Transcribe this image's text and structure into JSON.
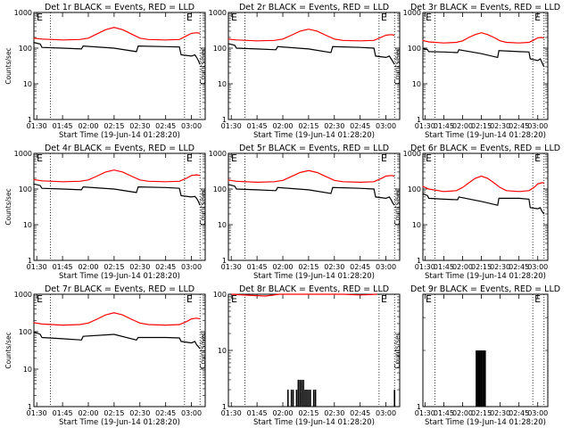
{
  "figure": {
    "ylabel": "Counts/sec",
    "xlabel": "Start Time (19-Jun-14 01:28:20)",
    "x_ticks": [
      "01:30",
      "01:45",
      "02:00",
      "02:15",
      "02:30",
      "02:45",
      "03:00"
    ],
    "y_ticks": [
      "1",
      "10",
      "100",
      "1000"
    ],
    "markers": [
      "E",
      "E"
    ]
  },
  "colors": {
    "events": "#000000",
    "lld": "#ff0000",
    "axis": "#000000"
  },
  "chart_data": [
    {
      "type": "line",
      "title": "Det 1r BLACK = Events, RED = LLD",
      "xlabel": "Start Time (19-Jun-14 01:28:20)",
      "ylabel": "Counts/sec",
      "x_unit": "time of day",
      "x_range": [
        "01:28:20",
        "03:08"
      ],
      "ylim": [
        1,
        1000
      ],
      "yscale": "log",
      "dotted_lines_at": [
        "01:38",
        "02:56",
        "03:05"
      ],
      "series": [
        {
          "name": "LLD",
          "color": "#ff0000",
          "x": [
            "01:28",
            "01:33",
            "01:45",
            "01:55",
            "02:00",
            "02:05",
            "02:10",
            "02:15",
            "02:20",
            "02:25",
            "02:30",
            "02:35",
            "02:45",
            "02:53",
            "02:57",
            "03:00",
            "03:03",
            "03:05"
          ],
          "y": [
            190,
            180,
            170,
            175,
            190,
            250,
            330,
            380,
            330,
            250,
            190,
            175,
            170,
            175,
            220,
            260,
            270,
            260
          ]
        },
        {
          "name": "Events",
          "color": "#000000",
          "x": [
            "01:28",
            "01:32",
            "01:33",
            "01:45",
            "01:56",
            "01:57",
            "02:15",
            "02:28",
            "02:29",
            "02:45",
            "02:53",
            "02:54",
            "03:00",
            "03:02",
            "03:03",
            "03:04",
            "03:05"
          ],
          "y": [
            145,
            130,
            105,
            100,
            95,
            115,
            100,
            80,
            115,
            110,
            108,
            65,
            60,
            65,
            55,
            45,
            35
          ]
        }
      ]
    },
    {
      "type": "line",
      "title": "Det 2r BLACK = Events, RED = LLD",
      "xlabel": "Start Time (19-Jun-14 01:28:20)",
      "ylabel": "Counts/sec",
      "x_unit": "time of day",
      "x_range": [
        "01:28:20",
        "03:08"
      ],
      "ylim": [
        1,
        1000
      ],
      "yscale": "log",
      "dotted_lines_at": [
        "01:38",
        "02:56",
        "03:05"
      ],
      "series": [
        {
          "name": "LLD",
          "color": "#ff0000",
          "x": [
            "01:28",
            "01:33",
            "01:45",
            "01:55",
            "02:00",
            "02:05",
            "02:10",
            "02:15",
            "02:20",
            "02:25",
            "02:30",
            "02:35",
            "02:45",
            "02:53",
            "02:57",
            "03:00",
            "03:03",
            "03:05"
          ],
          "y": [
            180,
            170,
            160,
            165,
            180,
            230,
            300,
            340,
            300,
            230,
            180,
            165,
            160,
            165,
            200,
            230,
            240,
            230
          ]
        },
        {
          "name": "Events",
          "color": "#000000",
          "x": [
            "01:28",
            "01:32",
            "01:33",
            "01:45",
            "01:56",
            "01:57",
            "02:15",
            "02:28",
            "02:29",
            "02:45",
            "02:53",
            "02:54",
            "03:00",
            "03:02",
            "03:03",
            "03:04",
            "03:05"
          ],
          "y": [
            135,
            120,
            100,
            95,
            90,
            110,
            95,
            75,
            110,
            105,
            100,
            60,
            55,
            60,
            50,
            42,
            35
          ]
        }
      ]
    },
    {
      "type": "line",
      "title": "Det 3r BLACK = Events, RED = LLD",
      "xlabel": "Start Time (19-Jun-14 01:28:20)",
      "ylabel": "Counts/sec",
      "x_unit": "time of day",
      "x_range": [
        "01:28:20",
        "03:08"
      ],
      "ylim": [
        1,
        1000
      ],
      "yscale": "log",
      "dotted_lines_at": [
        "01:38",
        "02:56",
        "03:05"
      ],
      "series": [
        {
          "name": "LLD",
          "color": "#ff0000",
          "x": [
            "01:28",
            "01:33",
            "01:45",
            "01:55",
            "02:00",
            "02:05",
            "02:10",
            "02:15",
            "02:20",
            "02:25",
            "02:30",
            "02:35",
            "02:45",
            "02:53",
            "02:57",
            "03:00",
            "03:03",
            "03:05"
          ],
          "y": [
            165,
            150,
            140,
            145,
            160,
            200,
            240,
            270,
            240,
            200,
            160,
            145,
            140,
            145,
            170,
            195,
            200,
            190
          ]
        },
        {
          "name": "Events",
          "color": "#000000",
          "x": [
            "01:28",
            "01:32",
            "01:33",
            "01:45",
            "01:56",
            "01:57",
            "02:15",
            "02:28",
            "02:29",
            "02:45",
            "02:53",
            "02:54",
            "03:00",
            "03:02",
            "03:03",
            "03:04",
            "03:05"
          ],
          "y": [
            100,
            90,
            80,
            78,
            75,
            90,
            70,
            55,
            85,
            80,
            78,
            50,
            45,
            50,
            42,
            35,
            30
          ]
        }
      ]
    },
    {
      "type": "line",
      "title": "Det 4r BLACK = Events, RED = LLD",
      "xlabel": "Start Time (19-Jun-14 01:28:20)",
      "ylabel": "Counts/sec",
      "x_unit": "time of day",
      "x_range": [
        "01:28:20",
        "03:08"
      ],
      "ylim": [
        1,
        1000
      ],
      "yscale": "log",
      "dotted_lines_at": [
        "01:38",
        "02:56",
        "03:05"
      ],
      "series": [
        {
          "name": "LLD",
          "color": "#ff0000",
          "x": [
            "01:28",
            "01:33",
            "01:45",
            "01:55",
            "02:00",
            "02:05",
            "02:10",
            "02:15",
            "02:20",
            "02:25",
            "02:30",
            "02:35",
            "02:45",
            "02:53",
            "02:57",
            "03:00",
            "03:03",
            "03:05"
          ],
          "y": [
            185,
            170,
            160,
            165,
            180,
            230,
            300,
            340,
            300,
            230,
            180,
            165,
            160,
            165,
            200,
            240,
            250,
            240
          ]
        },
        {
          "name": "Events",
          "color": "#000000",
          "x": [
            "01:28",
            "01:32",
            "01:33",
            "01:45",
            "01:56",
            "01:57",
            "02:15",
            "02:28",
            "02:29",
            "02:45",
            "02:53",
            "02:54",
            "03:00",
            "03:02",
            "03:03",
            "03:04",
            "03:05"
          ],
          "y": [
            140,
            125,
            105,
            100,
            95,
            115,
            100,
            80,
            115,
            110,
            105,
            65,
            60,
            62,
            55,
            45,
            35
          ]
        }
      ]
    },
    {
      "type": "line",
      "title": "Det 5r BLACK = Events, RED = LLD",
      "xlabel": "Start Time (19-Jun-14 01:28:20)",
      "ylabel": "Counts/sec",
      "x_unit": "time of day",
      "x_range": [
        "01:28:20",
        "03:08"
      ],
      "ylim": [
        1,
        1000
      ],
      "yscale": "log",
      "dotted_lines_at": [
        "01:38",
        "02:56",
        "03:05"
      ],
      "series": [
        {
          "name": "LLD",
          "color": "#ff0000",
          "x": [
            "01:28",
            "01:33",
            "01:45",
            "01:55",
            "02:00",
            "02:05",
            "02:10",
            "02:15",
            "02:20",
            "02:25",
            "02:30",
            "02:35",
            "02:45",
            "02:53",
            "02:57",
            "03:00",
            "03:03",
            "03:05"
          ],
          "y": [
            180,
            165,
            155,
            160,
            175,
            225,
            290,
            330,
            290,
            225,
            175,
            160,
            155,
            160,
            195,
            230,
            240,
            230
          ]
        },
        {
          "name": "Events",
          "color": "#000000",
          "x": [
            "01:28",
            "01:32",
            "01:33",
            "01:45",
            "01:56",
            "01:57",
            "02:15",
            "02:28",
            "02:29",
            "02:45",
            "02:53",
            "02:54",
            "03:00",
            "03:02",
            "03:03",
            "03:04",
            "03:05"
          ],
          "y": [
            135,
            120,
            100,
            95,
            90,
            110,
            95,
            75,
            110,
            105,
            100,
            60,
            55,
            60,
            50,
            40,
            35
          ]
        }
      ]
    },
    {
      "type": "line",
      "title": "Det 6r BLACK = Events, RED = LLD",
      "xlabel": "Start Time (19-Jun-14 01:28:20)",
      "ylabel": "Counts/sec",
      "x_unit": "time of day",
      "x_range": [
        "01:28:20",
        "03:08"
      ],
      "ylim": [
        1,
        1000
      ],
      "yscale": "log",
      "dotted_lines_at": [
        "01:38",
        "02:56",
        "03:05"
      ],
      "series": [
        {
          "name": "LLD",
          "color": "#ff0000",
          "x": [
            "01:28",
            "01:33",
            "01:45",
            "01:55",
            "02:00",
            "02:05",
            "02:10",
            "02:15",
            "02:20",
            "02:25",
            "02:30",
            "02:35",
            "02:45",
            "02:53",
            "02:57",
            "03:00",
            "03:03",
            "03:05"
          ],
          "y": [
            120,
            100,
            85,
            90,
            110,
            150,
            200,
            230,
            200,
            150,
            110,
            90,
            85,
            90,
            110,
            140,
            150,
            150
          ]
        },
        {
          "name": "Events",
          "color": "#000000",
          "x": [
            "01:28",
            "01:32",
            "01:33",
            "01:45",
            "01:56",
            "01:57",
            "02:15",
            "02:28",
            "02:29",
            "02:45",
            "02:53",
            "02:54",
            "03:00",
            "03:02",
            "03:03",
            "03:04",
            "03:05"
          ],
          "y": [
            75,
            65,
            55,
            52,
            50,
            60,
            45,
            35,
            55,
            55,
            52,
            30,
            28,
            30,
            25,
            22,
            20
          ]
        }
      ]
    },
    {
      "type": "line",
      "title": "Det 7r BLACK = Events, RED = LLD",
      "xlabel": "Start Time (19-Jun-14 01:28:20)",
      "ylabel": "Counts/sec",
      "x_unit": "time of day",
      "x_range": [
        "01:28:20",
        "03:08"
      ],
      "ylim": [
        1,
        1000
      ],
      "yscale": "log",
      "dotted_lines_at": [
        "01:38",
        "02:56",
        "03:05"
      ],
      "series": [
        {
          "name": "LLD",
          "color": "#ff0000",
          "x": [
            "01:28",
            "01:33",
            "01:45",
            "01:55",
            "02:00",
            "02:05",
            "02:10",
            "02:15",
            "02:20",
            "02:25",
            "02:30",
            "02:35",
            "02:45",
            "02:53",
            "02:57",
            "03:00",
            "03:03",
            "03:05"
          ],
          "y": [
            175,
            160,
            150,
            155,
            170,
            215,
            280,
            320,
            280,
            215,
            170,
            155,
            150,
            155,
            185,
            220,
            230,
            220
          ]
        },
        {
          "name": "Events",
          "color": "#000000",
          "x": [
            "01:28",
            "01:32",
            "01:33",
            "01:45",
            "01:56",
            "01:57",
            "02:15",
            "02:28",
            "02:29",
            "02:45",
            "02:53",
            "02:54",
            "03:00",
            "03:02",
            "03:03",
            "03:04",
            "03:05"
          ],
          "y": [
            100,
            85,
            70,
            65,
            60,
            75,
            85,
            60,
            70,
            70,
            68,
            55,
            50,
            55,
            45,
            40,
            35
          ]
        }
      ]
    },
    {
      "type": "line",
      "title": "Det 8r BLACK = Events, RED = LLD",
      "xlabel": "Start Time (19-Jun-14 01:28:20)",
      "ylabel": "Counts/sec",
      "x_unit": "time of day",
      "x_range": [
        "01:28:20",
        "03:08"
      ],
      "ylim": [
        1,
        100
      ],
      "yscale": "log",
      "dotted_lines_at": [
        "01:38",
        "02:56",
        "03:05"
      ],
      "series": [
        {
          "name": "LLD",
          "color": "#ff0000",
          "x": [
            "01:30",
            "01:40",
            "01:50",
            "01:58",
            "02:35",
            "02:45",
            "02:55"
          ],
          "y": [
            100,
            96,
            93,
            100,
            100,
            97,
            100
          ]
        },
        {
          "name": "Events",
          "color": "#000000",
          "type": "spikes",
          "x": [
            "02:03",
            "02:05",
            "02:06",
            "02:08",
            "02:09",
            "02:10",
            "02:11",
            "02:12",
            "02:13",
            "02:14",
            "02:15",
            "02:16",
            "02:18",
            "02:19",
            "03:05"
          ],
          "y": [
            2,
            2,
            2,
            2,
            3,
            3,
            3,
            3,
            2,
            2,
            2,
            2,
            2,
            2,
            2
          ]
        }
      ]
    },
    {
      "type": "line",
      "title": "Det 9r BLACK = Events, RED = LLD",
      "xlabel": "Start Time (19-Jun-14 01:28:20)",
      "ylabel": "Counts/sec",
      "x_unit": "time of day",
      "x_range": [
        "01:28:20",
        "03:08"
      ],
      "ylim": [
        1,
        4
      ],
      "yscale": "log",
      "dotted_lines_at": [
        "01:38",
        "02:56",
        "03:05"
      ],
      "series": [
        {
          "name": "Events",
          "color": "#000000",
          "type": "spikes",
          "x": [
            "02:11",
            "02:12",
            "02:13",
            "02:14",
            "02:15",
            "02:16",
            "02:17",
            "02:18"
          ],
          "y": [
            2,
            2,
            2,
            2,
            2,
            2,
            2,
            2
          ]
        }
      ]
    }
  ]
}
